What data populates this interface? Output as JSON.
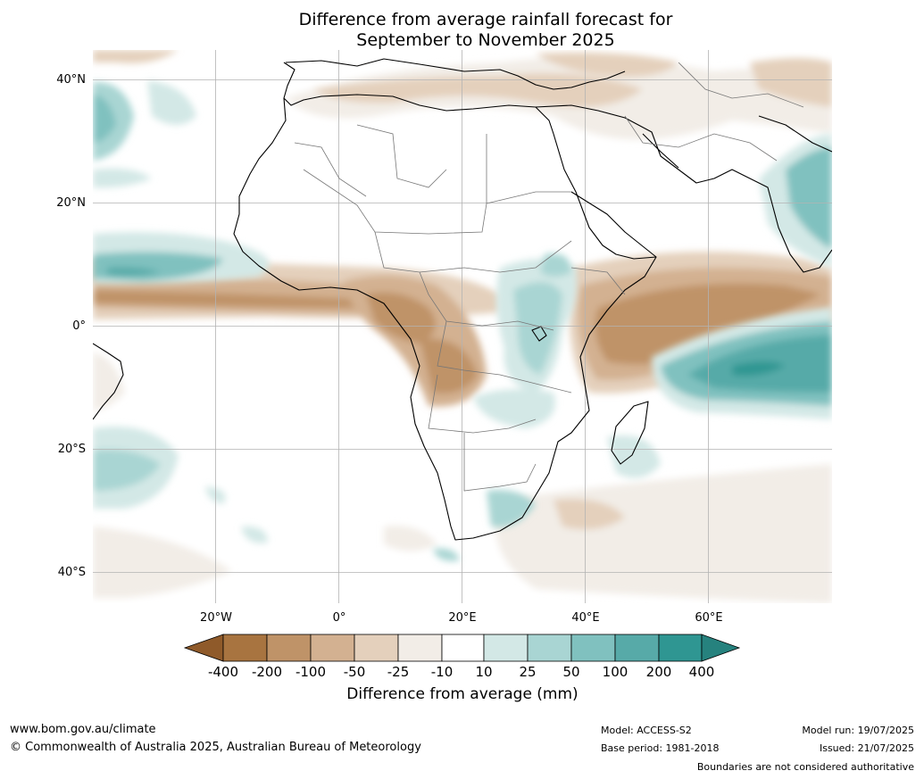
{
  "title_line1": "Difference from average rainfall forecast for",
  "title_line2": "September to November 2025",
  "map": {
    "lat_labels": [
      "40°N",
      "20°N",
      "0°",
      "20°S",
      "40°S"
    ],
    "lon_labels": [
      "20°W",
      "0°",
      "20°E",
      "40°E",
      "60°E"
    ]
  },
  "colorbar": {
    "tick_labels": [
      "-400",
      "-200",
      "-100",
      "-50",
      "-25",
      "-10",
      "10",
      "25",
      "50",
      "100",
      "200",
      "400"
    ],
    "label": "Difference from average (mm)",
    "colors": [
      "#8f5a2a",
      "#a87440",
      "#bf9368",
      "#d3b191",
      "#e4d0bc",
      "#f2ede7",
      "#ffffff",
      "#d3e8e6",
      "#a9d5d3",
      "#80c1bf",
      "#57aaa8",
      "#2f9692",
      "#26827e"
    ]
  },
  "footer": {
    "url": "www.bom.gov.au/climate",
    "copyright": "© Commonwealth of Australia 2025, Australian Bureau of Meteorology",
    "model": "Model: ACCESS-S2",
    "base_period": "Base period: 1981-2018",
    "model_run": "Model run: 19/07/2025",
    "issued": "Issued: 21/07/2025",
    "disclaimer": "Boundaries are not considered authoritative"
  }
}
